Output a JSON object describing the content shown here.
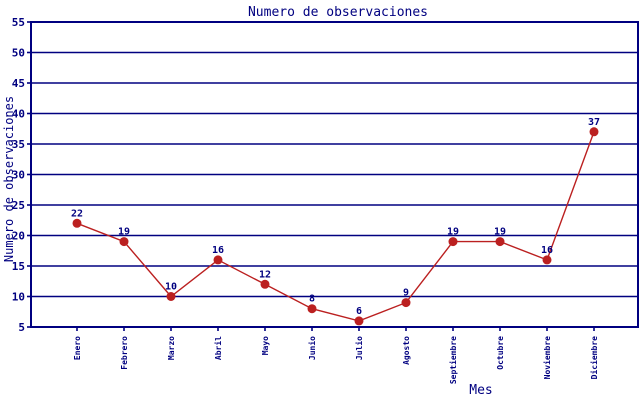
{
  "chart_data": {
    "type": "line",
    "title": "Numero de observaciones",
    "xlabel": "Mes",
    "ylabel": "Numero de observaciones",
    "categories": [
      "Enero",
      "Febrero",
      "Marzo",
      "Abril",
      "Mayo",
      "Junio",
      "Julio",
      "Agosto",
      "Septiembre",
      "Octubre",
      "Noviembre",
      "Diciembre"
    ],
    "values": [
      22,
      19,
      10,
      16,
      12,
      8,
      6,
      9,
      19,
      19,
      16,
      37
    ],
    "point_labels": [
      22,
      19,
      10,
      16,
      12,
      8,
      6,
      9,
      19,
      19,
      16,
      37
    ],
    "ylim": [
      5,
      55
    ],
    "ytick_step": 5,
    "yticks": [
      5,
      10,
      15,
      20,
      25,
      30,
      35,
      40,
      45,
      50,
      55
    ],
    "grid": "horizontal",
    "legend": "none",
    "marker": "filled-circle",
    "colors": {
      "background": "#ffffff",
      "axis": "#000080",
      "grid": "#000080",
      "text": "#000080",
      "line": "#bb2020",
      "marker": "#bb2020"
    }
  }
}
